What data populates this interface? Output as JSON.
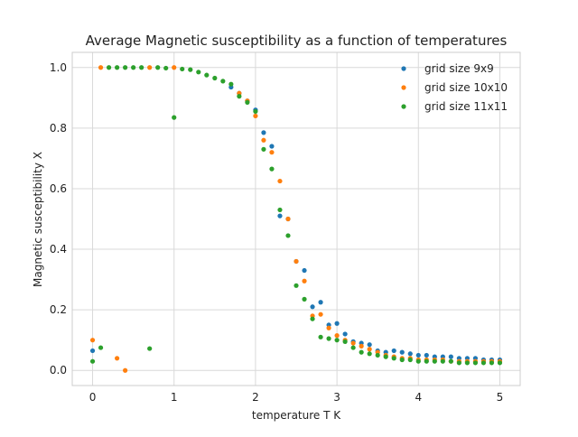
{
  "chart_data": {
    "type": "scatter",
    "title": "Average Magnetic susceptibility as a function of temperatures",
    "xlabel": "temperature T K",
    "ylabel": "Magnetic susceptibility X",
    "xlim": [
      -0.25,
      5.25
    ],
    "ylim": [
      -0.05,
      1.05
    ],
    "xticks": [
      0,
      1,
      2,
      3,
      4,
      5
    ],
    "xtick_labels": [
      "0",
      "1",
      "2",
      "3",
      "4",
      "5"
    ],
    "yticks": [
      0.0,
      0.2,
      0.4,
      0.6,
      0.8,
      1.0
    ],
    "ytick_labels": [
      "0.0",
      "0.2",
      "0.4",
      "0.6",
      "0.8",
      "1.0"
    ],
    "grid": true,
    "legend_position": "top-right",
    "series": [
      {
        "name": "grid size 9x9",
        "color": "#1f77b4",
        "points": [
          [
            0.0,
            0.065
          ],
          [
            1.7,
            0.935
          ],
          [
            1.8,
            0.915
          ],
          [
            1.9,
            0.89
          ],
          [
            2.0,
            0.86
          ],
          [
            2.1,
            0.785
          ],
          [
            2.2,
            0.74
          ],
          [
            2.3,
            0.51
          ],
          [
            2.4,
            0.5
          ],
          [
            2.5,
            0.36
          ],
          [
            2.6,
            0.33
          ],
          [
            2.7,
            0.21
          ],
          [
            2.8,
            0.225
          ],
          [
            2.9,
            0.15
          ],
          [
            3.0,
            0.155
          ],
          [
            3.1,
            0.12
          ],
          [
            3.2,
            0.095
          ],
          [
            3.3,
            0.09
          ],
          [
            3.4,
            0.085
          ],
          [
            3.5,
            0.065
          ],
          [
            3.6,
            0.06
          ],
          [
            3.7,
            0.065
          ],
          [
            3.8,
            0.06
          ],
          [
            3.9,
            0.055
          ],
          [
            4.0,
            0.05
          ],
          [
            4.1,
            0.05
          ],
          [
            4.2,
            0.045
          ],
          [
            4.3,
            0.045
          ],
          [
            4.4,
            0.045
          ],
          [
            4.5,
            0.04
          ],
          [
            4.6,
            0.04
          ],
          [
            4.7,
            0.04
          ],
          [
            4.8,
            0.035
          ],
          [
            4.9,
            0.035
          ],
          [
            5.0,
            0.035
          ]
        ]
      },
      {
        "name": "grid size 10x10",
        "color": "#ff7f0e",
        "points": [
          [
            0.0,
            0.1
          ],
          [
            0.1,
            1.0
          ],
          [
            0.3,
            0.04
          ],
          [
            0.4,
            0.0
          ],
          [
            0.7,
            1.0
          ],
          [
            1.0,
            1.0
          ],
          [
            1.8,
            0.915
          ],
          [
            1.9,
            0.89
          ],
          [
            2.0,
            0.84
          ],
          [
            2.1,
            0.76
          ],
          [
            2.2,
            0.72
          ],
          [
            2.3,
            0.625
          ],
          [
            2.4,
            0.5
          ],
          [
            2.5,
            0.36
          ],
          [
            2.6,
            0.295
          ],
          [
            2.7,
            0.18
          ],
          [
            2.8,
            0.185
          ],
          [
            2.9,
            0.14
          ],
          [
            3.0,
            0.115
          ],
          [
            3.1,
            0.1
          ],
          [
            3.2,
            0.09
          ],
          [
            3.3,
            0.08
          ],
          [
            3.4,
            0.07
          ],
          [
            3.5,
            0.06
          ],
          [
            3.6,
            0.05
          ],
          [
            3.7,
            0.045
          ],
          [
            3.8,
            0.04
          ],
          [
            3.9,
            0.04
          ],
          [
            4.0,
            0.035
          ],
          [
            4.1,
            0.035
          ],
          [
            4.2,
            0.035
          ],
          [
            4.3,
            0.035
          ],
          [
            4.4,
            0.03
          ],
          [
            4.5,
            0.03
          ],
          [
            4.6,
            0.03
          ],
          [
            4.7,
            0.03
          ],
          [
            4.8,
            0.03
          ],
          [
            4.9,
            0.03
          ],
          [
            5.0,
            0.03
          ]
        ]
      },
      {
        "name": "grid size 11x11",
        "color": "#2ca02c",
        "points": [
          [
            0.0,
            0.03
          ],
          [
            0.1,
            0.075
          ],
          [
            0.2,
            1.0
          ],
          [
            0.3,
            1.0
          ],
          [
            0.4,
            1.0
          ],
          [
            0.5,
            1.0
          ],
          [
            0.6,
            1.0
          ],
          [
            0.7,
            0.072
          ],
          [
            0.8,
            1.0
          ],
          [
            0.9,
            0.998
          ],
          [
            1.0,
            0.835
          ],
          [
            1.1,
            0.995
          ],
          [
            1.2,
            0.993
          ],
          [
            1.3,
            0.985
          ],
          [
            1.4,
            0.975
          ],
          [
            1.5,
            0.965
          ],
          [
            1.6,
            0.955
          ],
          [
            1.7,
            0.945
          ],
          [
            1.8,
            0.905
          ],
          [
            1.9,
            0.885
          ],
          [
            2.0,
            0.855
          ],
          [
            2.1,
            0.73
          ],
          [
            2.2,
            0.665
          ],
          [
            2.3,
            0.53
          ],
          [
            2.4,
            0.445
          ],
          [
            2.5,
            0.28
          ],
          [
            2.6,
            0.235
          ],
          [
            2.7,
            0.17
          ],
          [
            2.8,
            0.11
          ],
          [
            2.9,
            0.105
          ],
          [
            3.0,
            0.1
          ],
          [
            3.1,
            0.095
          ],
          [
            3.2,
            0.075
          ],
          [
            3.3,
            0.06
          ],
          [
            3.4,
            0.055
          ],
          [
            3.5,
            0.05
          ],
          [
            3.6,
            0.045
          ],
          [
            3.7,
            0.04
          ],
          [
            3.8,
            0.035
          ],
          [
            3.9,
            0.035
          ],
          [
            4.0,
            0.03
          ],
          [
            4.1,
            0.03
          ],
          [
            4.2,
            0.03
          ],
          [
            4.3,
            0.03
          ],
          [
            4.4,
            0.03
          ],
          [
            4.5,
            0.025
          ],
          [
            4.6,
            0.025
          ],
          [
            4.7,
            0.025
          ],
          [
            4.8,
            0.025
          ],
          [
            4.9,
            0.025
          ],
          [
            5.0,
            0.025
          ]
        ]
      }
    ]
  }
}
